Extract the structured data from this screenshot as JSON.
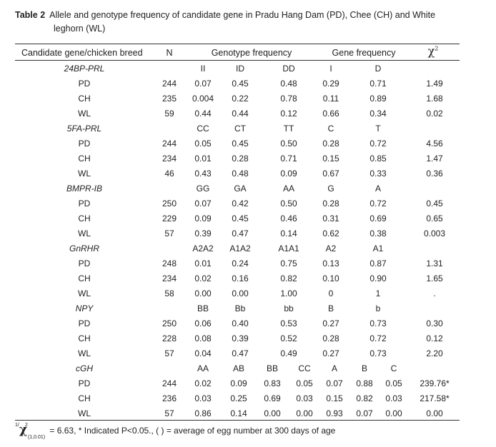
{
  "caption": {
    "label": "Table 2",
    "line1": "Allele and genotype frequency of candidate gene in Pradu Hang Dam (PD), Chee (CH) and White",
    "line2": "leghorn (WL)"
  },
  "headers": {
    "breed": "Candidate gene/chicken breed",
    "n": "N",
    "genotype": "Genotype frequency",
    "gene": "Gene frequency",
    "chi": "χ",
    "chi_sup": "2"
  },
  "genes": [
    {
      "name": "24BP-PRL",
      "genotypes": [
        "II",
        "ID",
        "DD"
      ],
      "alleles": [
        "I",
        "D"
      ],
      "rows": [
        {
          "breed": "PD",
          "n": "244",
          "g": [
            "0.07",
            "0.45",
            "0.48"
          ],
          "a": [
            "0.29",
            "0.71"
          ],
          "chi": "1.49"
        },
        {
          "breed": "CH",
          "n": "235",
          "g": [
            "0.004",
            "0.22",
            "0.78"
          ],
          "a": [
            "0.11",
            "0.89"
          ],
          "chi": "1.68"
        },
        {
          "breed": "WL",
          "n": "59",
          "g": [
            "0.44",
            "0.44",
            "0.12"
          ],
          "a": [
            "0.66",
            "0.34"
          ],
          "chi": "0.02"
        }
      ]
    },
    {
      "name": "5FA-PRL",
      "genotypes": [
        "CC",
        "CT",
        "TT"
      ],
      "alleles": [
        "C",
        "T"
      ],
      "rows": [
        {
          "breed": "PD",
          "n": "244",
          "g": [
            "0.05",
            "0.45",
            "0.50"
          ],
          "a": [
            "0.28",
            "0.72"
          ],
          "chi": "4.56"
        },
        {
          "breed": "CH",
          "n": "234",
          "g": [
            "0.01",
            "0.28",
            "0.71"
          ],
          "a": [
            "0.15",
            "0.85"
          ],
          "chi": "1.47"
        },
        {
          "breed": "WL",
          "n": "46",
          "g": [
            "0.43",
            "0.48",
            "0.09"
          ],
          "a": [
            "0.67",
            "0.33"
          ],
          "chi": "0.36"
        }
      ]
    },
    {
      "name": "BMPR-IB",
      "genotypes": [
        "GG",
        "GA",
        "AA"
      ],
      "alleles": [
        "G",
        "A"
      ],
      "rows": [
        {
          "breed": "PD",
          "n": "250",
          "g": [
            "0.07",
            "0.42",
            "0.50"
          ],
          "a": [
            "0.28",
            "0.72"
          ],
          "chi": "0.45"
        },
        {
          "breed": "CH",
          "n": "229",
          "g": [
            "0.09",
            "0.45",
            "0.46"
          ],
          "a": [
            "0.31",
            "0.69"
          ],
          "chi": "0.65"
        },
        {
          "breed": "WL",
          "n": "57",
          "g": [
            "0.39",
            "0.47",
            "0.14"
          ],
          "a": [
            "0.62",
            "0.38"
          ],
          "chi": "0.003"
        }
      ]
    },
    {
      "name": "GnRHR",
      "genotypes": [
        "A2A2",
        "A1A2",
        "A1A1"
      ],
      "alleles": [
        "A2",
        "A1"
      ],
      "rows": [
        {
          "breed": "PD",
          "n": "248",
          "g": [
            "0.01",
            "0.24",
            "0.75"
          ],
          "a": [
            "0.13",
            "0.87"
          ],
          "chi": "1.31"
        },
        {
          "breed": "CH",
          "n": "234",
          "g": [
            "0.02",
            "0.16",
            "0.82"
          ],
          "a": [
            "0.10",
            "0.90"
          ],
          "chi": "1.65"
        },
        {
          "breed": "WL",
          "n": "58",
          "g": [
            "0.00",
            "0.00",
            "1.00"
          ],
          "a": [
            "0",
            "1"
          ],
          "chi": "."
        }
      ]
    },
    {
      "name": "NPY",
      "genotypes": [
        "BB",
        "Bb",
        "bb"
      ],
      "alleles": [
        "B",
        "b"
      ],
      "rows": [
        {
          "breed": "PD",
          "n": "250",
          "g": [
            "0.06",
            "0.40",
            "0.53"
          ],
          "a": [
            "0.27",
            "0.73"
          ],
          "chi": "0.30"
        },
        {
          "breed": "CH",
          "n": "228",
          "g": [
            "0.08",
            "0.39",
            "0.52"
          ],
          "a": [
            "0.28",
            "0.72"
          ],
          "chi": "0.12"
        },
        {
          "breed": "WL",
          "n": "57",
          "g": [
            "0.04",
            "0.47",
            "0.49"
          ],
          "a": [
            "0.27",
            "0.73"
          ],
          "chi": "2.20"
        }
      ]
    },
    {
      "name": "cGH",
      "genotypes": [
        "AA",
        "AB",
        "BB",
        "CC"
      ],
      "alleles": [
        "A",
        "B",
        "C"
      ],
      "rows": [
        {
          "breed": "PD",
          "n": "244",
          "g": [
            "0.02",
            "0.09",
            "0.83",
            "0.05"
          ],
          "a": [
            "0.07",
            "0.88",
            "0.05"
          ],
          "chi": "239.76*"
        },
        {
          "breed": "CH",
          "n": "236",
          "g": [
            "0.03",
            "0.25",
            "0.69",
            "0.03"
          ],
          "a": [
            "0.15",
            "0.82",
            "0.03"
          ],
          "chi": "217.58*"
        },
        {
          "breed": "WL",
          "n": "57",
          "g": [
            "0.86",
            "0.14",
            "0.00",
            "0.00"
          ],
          "a": [
            "0.93",
            "0.07",
            "0.00"
          ],
          "chi": "0.00"
        }
      ]
    }
  ],
  "footnote": {
    "pre": "1/",
    "chi": "χ",
    "chi_sup": "2",
    "chi_sub": "(1,0.01)",
    "text": "= 6.63, * Indicated P<0.05., ( ) = average of egg number at 300 days of age"
  }
}
